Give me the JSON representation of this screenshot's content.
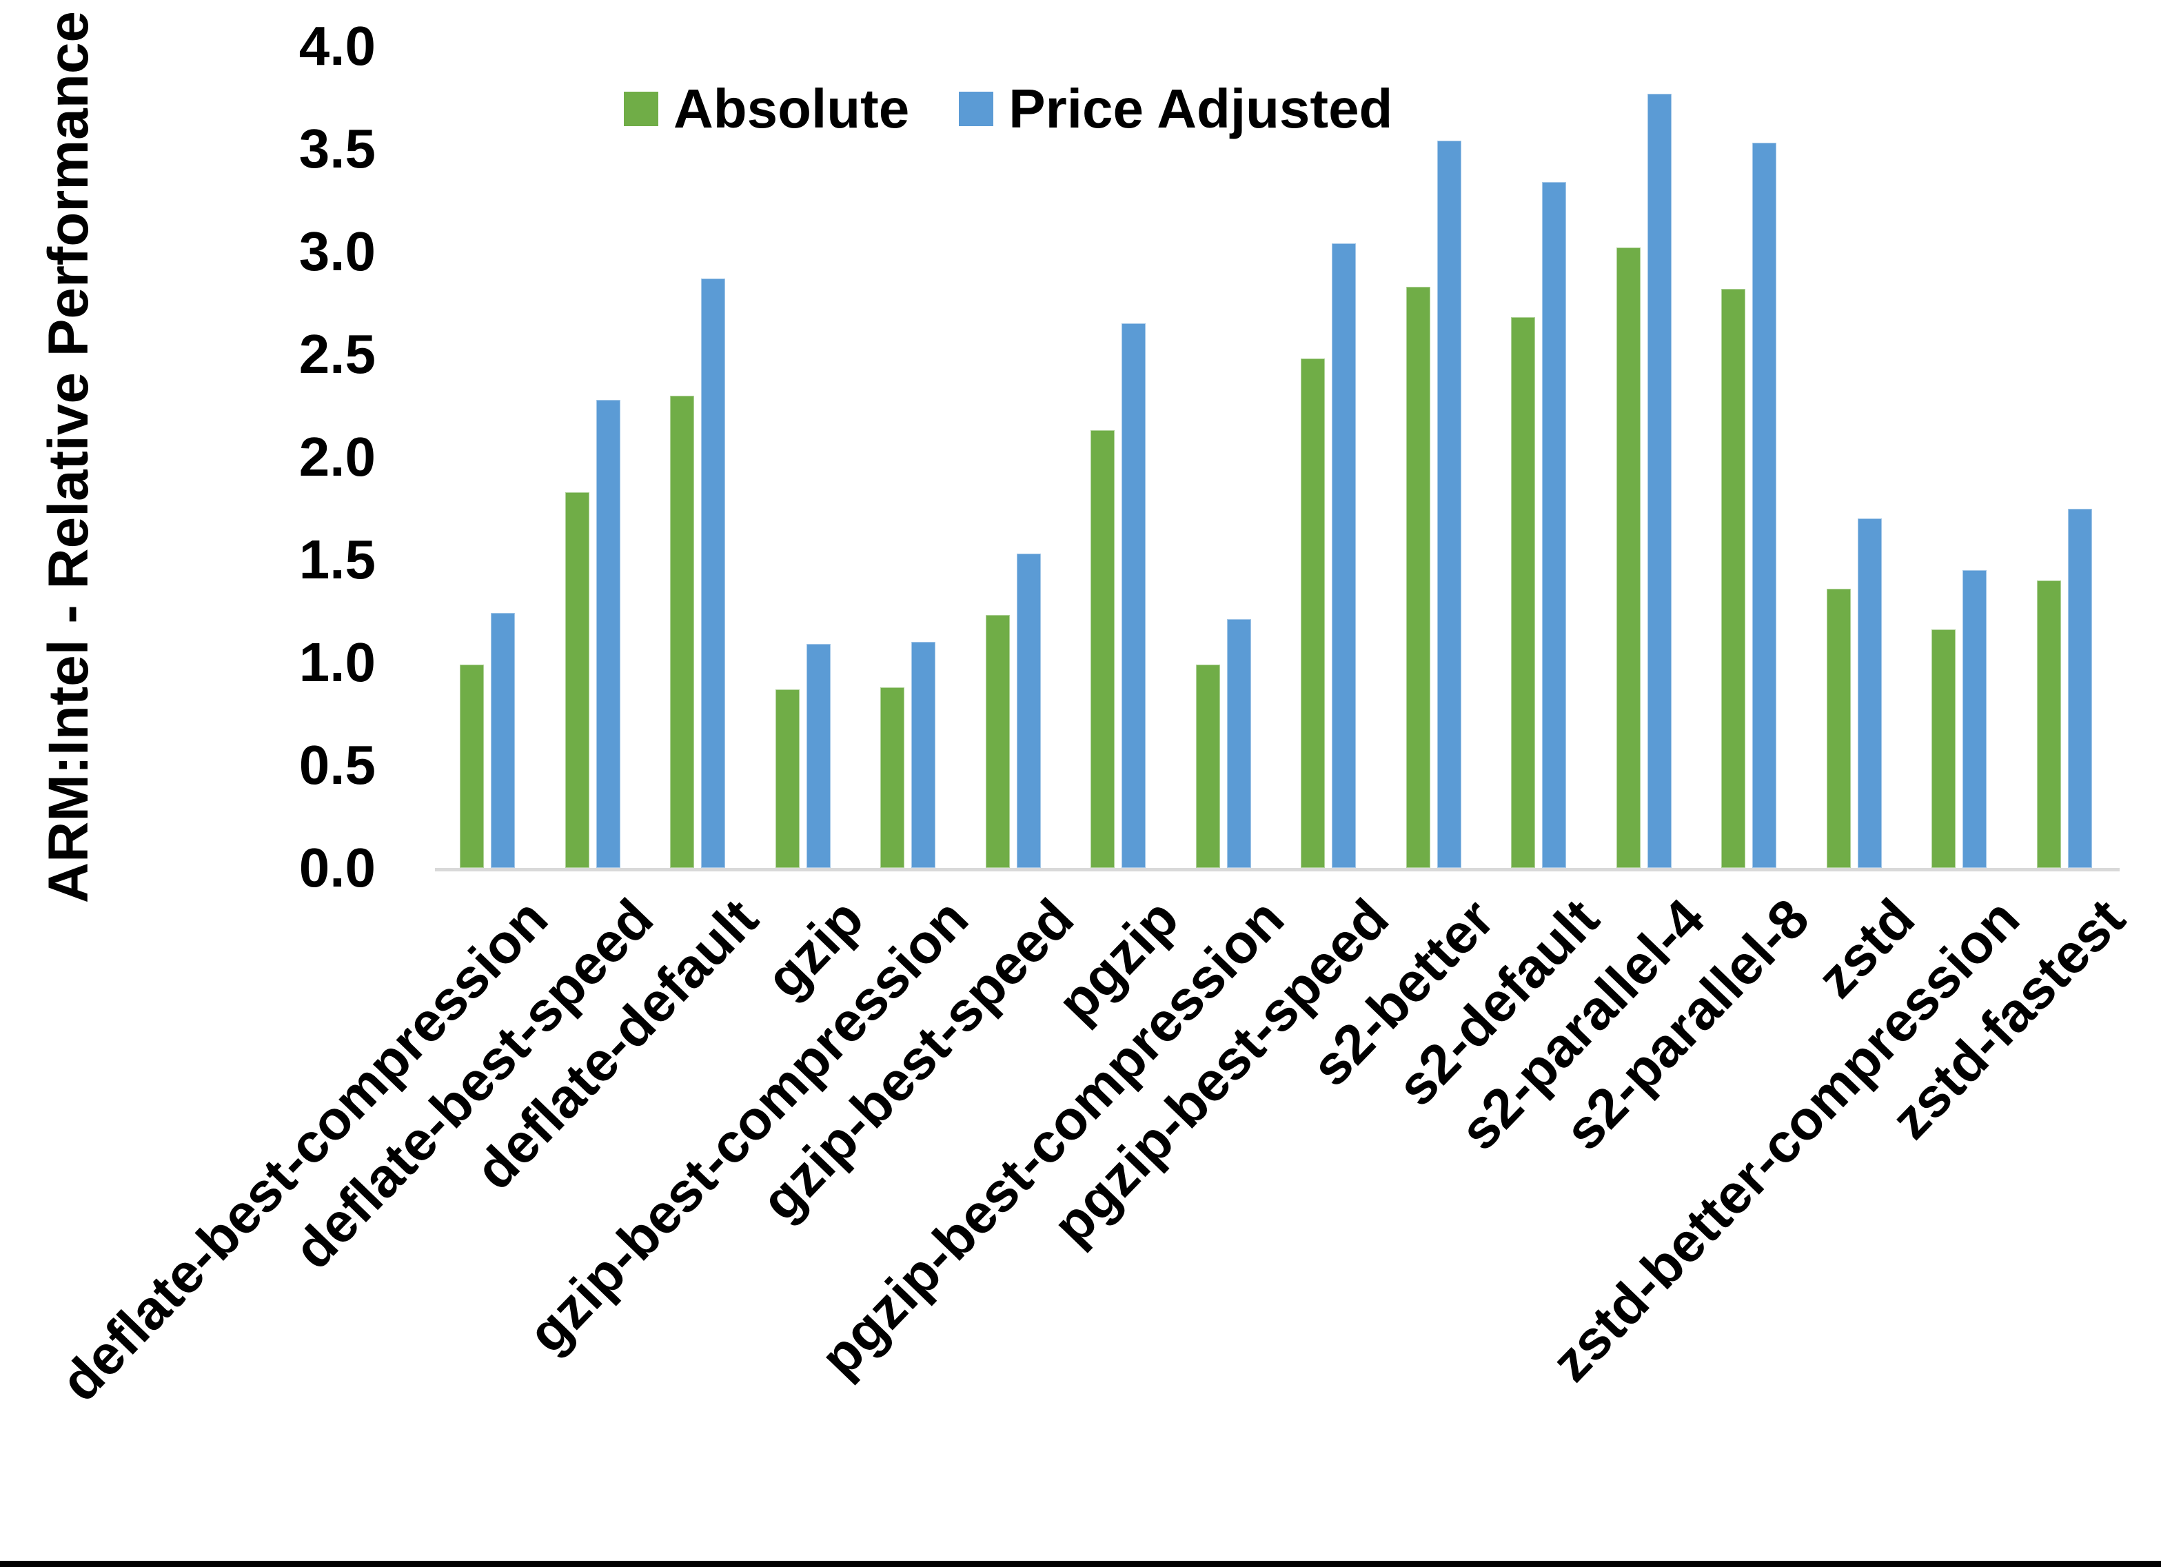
{
  "colors": {
    "background": "#ffffff",
    "absolute_series": "#70ad47",
    "price_adjusted_series": "#5b9bd5",
    "axis_line": "#d9d9d9",
    "text": "#000000",
    "bottom_border": "#000000"
  },
  "legend": {
    "items": [
      {
        "label": "Absolute",
        "color": "#70ad47"
      },
      {
        "label": "Price Adjusted",
        "color": "#5b9bd5"
      }
    ]
  },
  "y_axis": {
    "title": "ARM:Intel - Relative Performance",
    "tick_labels": [
      "4.0",
      "3.5",
      "3.0",
      "2.5",
      "2.0",
      "1.5",
      "1.0",
      "0.5",
      "0.0"
    ]
  },
  "chart_data": {
    "type": "bar",
    "title": "",
    "xlabel": "",
    "ylabel": "ARM:Intel - Relative Performance",
    "ylim": [
      0.0,
      4.0
    ],
    "ytick_step": 0.5,
    "grid": false,
    "legend_position": "top-center",
    "bar_orientation": "vertical",
    "categories": [
      "deflate-best-compression",
      "deflate-best-speed",
      "deflate-default",
      "gzip",
      "gzip-best-compression",
      "gzip-best-speed",
      "pgzip",
      "pgzip-best-compression",
      "pgzip-best-speed",
      "s2-better",
      "s2-default",
      "s2-parallel-4",
      "s2-parallel-8",
      "zstd",
      "zstd-better-compression",
      "zstd-fastest"
    ],
    "series": [
      {
        "name": "Absolute",
        "color": "#70ad47",
        "values": [
          0.99,
          1.83,
          2.3,
          0.87,
          0.88,
          1.23,
          2.13,
          0.99,
          2.48,
          2.83,
          2.68,
          3.02,
          2.82,
          1.36,
          1.16,
          1.4
        ]
      },
      {
        "name": "Price Adjusted",
        "color": "#5b9bd5",
        "values": [
          1.24,
          2.28,
          2.87,
          1.09,
          1.1,
          1.53,
          2.65,
          1.21,
          3.04,
          3.54,
          3.34,
          3.77,
          3.53,
          1.7,
          1.45,
          1.75
        ]
      }
    ]
  }
}
